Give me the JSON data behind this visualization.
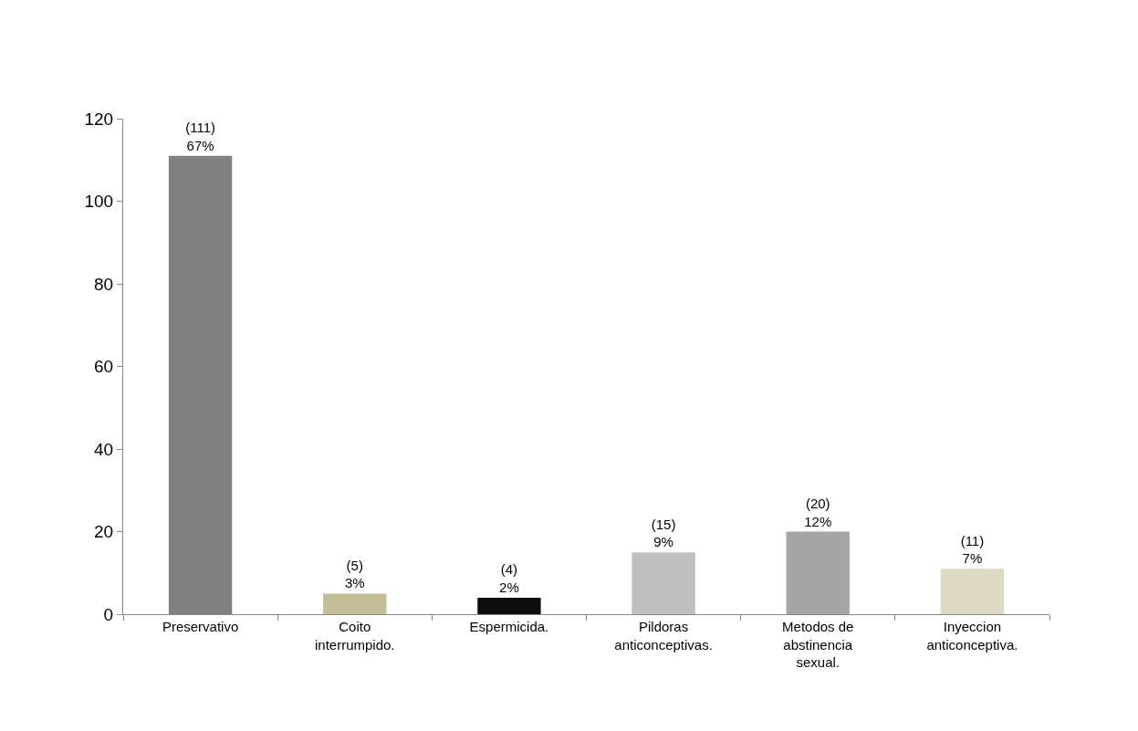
{
  "chart_data": {
    "type": "bar",
    "categories": [
      "Preservativo",
      "Coito\ninterrumpido.",
      "Espermicida.",
      "Pildoras\nanticonceptivas.",
      "Metodos de\nabstinencia\nsexual.",
      "Inyeccion\nanticonceptiva."
    ],
    "values": [
      111,
      5,
      4,
      15,
      20,
      11
    ],
    "colors": [
      "#808080",
      "#c4bd97",
      "#0d0d0d",
      "#bfbfbf",
      "#a5a5a5",
      "#ddd9c3"
    ],
    "value_labels": [
      "(111)\n67%",
      "(5)\n3%",
      "(4)\n2%",
      "(15)\n9%",
      "(20)\n12%",
      "(11)\n7%"
    ],
    "ylim": [
      0,
      120
    ],
    "yticks": [
      0,
      20,
      40,
      60,
      80,
      100,
      120
    ],
    "legend": false
  }
}
